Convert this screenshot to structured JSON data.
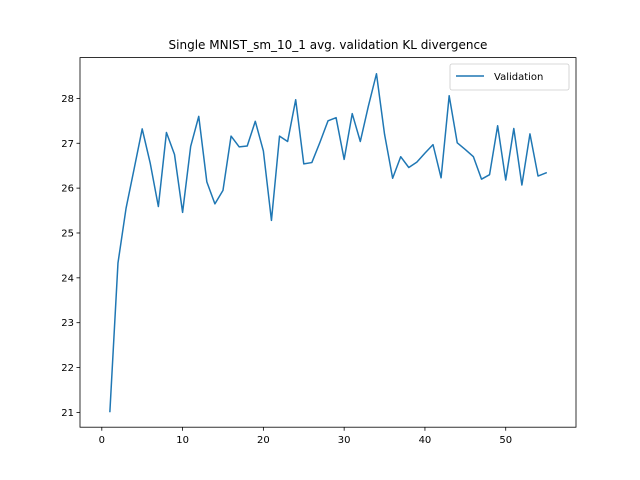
{
  "chart_data": {
    "type": "line",
    "title": "Single MNIST_sm_10_1 avg. validation KL divergence",
    "xlabel": "",
    "ylabel": "",
    "xlim": [
      -2.7,
      58.7
    ],
    "ylim": [
      20.67,
      28.91
    ],
    "x_ticks": [
      0,
      10,
      20,
      30,
      40,
      50
    ],
    "y_ticks": [
      21,
      22,
      23,
      24,
      25,
      26,
      27,
      28
    ],
    "legend": {
      "position": "top-right",
      "entries": [
        "Validation"
      ]
    },
    "grid": false,
    "series": [
      {
        "name": "Validation",
        "color": "#1f77b4",
        "x": [
          1,
          2,
          3,
          4,
          5,
          6,
          7,
          8,
          9,
          10,
          11,
          12,
          13,
          14,
          15,
          16,
          17,
          18,
          19,
          20,
          21,
          22,
          23,
          24,
          25,
          26,
          27,
          28,
          29,
          30,
          31,
          32,
          33,
          34,
          35,
          36,
          37,
          38,
          39,
          40,
          41,
          42,
          43,
          44,
          45,
          46,
          47,
          48,
          49,
          50,
          51,
          52,
          53,
          54,
          55
        ],
        "y": [
          21.02,
          24.33,
          25.55,
          26.43,
          27.32,
          26.55,
          25.59,
          27.24,
          26.75,
          25.46,
          26.93,
          27.6,
          26.14,
          25.65,
          25.95,
          27.16,
          26.92,
          26.94,
          27.49,
          26.83,
          25.28,
          27.16,
          27.04,
          27.97,
          26.54,
          26.57,
          27.02,
          27.5,
          27.57,
          26.64,
          27.66,
          27.04,
          27.83,
          28.55,
          27.2,
          26.22,
          26.7,
          26.46,
          26.58,
          26.78,
          26.97,
          26.23,
          28.06,
          27.01,
          26.86,
          26.7,
          26.2,
          26.3,
          27.39,
          26.18,
          27.33,
          26.07,
          27.21,
          26.27,
          26.34
        ]
      }
    ]
  }
}
